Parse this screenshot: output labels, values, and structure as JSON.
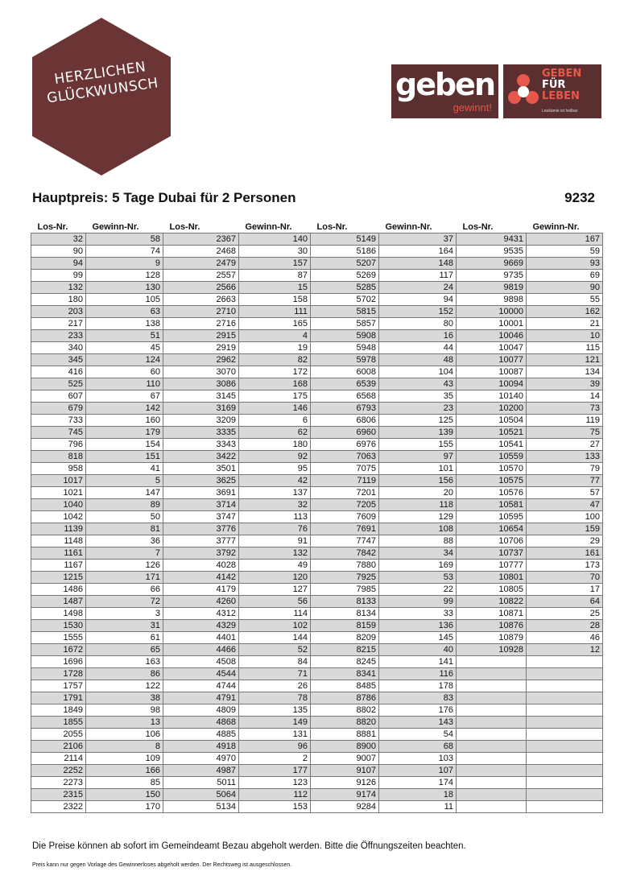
{
  "badge": {
    "line1": "HERZLICHEN",
    "line2": "GLÜCKWUNSCH",
    "color": "#6b3535"
  },
  "logos": {
    "geben": {
      "word": "geben",
      "sub": "gewinnt!"
    },
    "gfl": {
      "l1": "GEBEN",
      "l2": "FÜR",
      "l3": "LEBEN",
      "tag": "Leukämie ist heilbar"
    },
    "color": "#5b2f2f",
    "accent": "#e8574b"
  },
  "title": "Hauptpreis: 5 Tage Dubai für 2 Personen",
  "number": "9232",
  "table": {
    "headers": [
      "Los-Nr.",
      "Gewinn-Nr.",
      "Los-Nr.",
      "Gewinn-Nr.",
      "Los-Nr.",
      "Gewinn-Nr.",
      "Los-Nr.",
      "Gewinn-Nr."
    ],
    "groups": [
      [
        [
          "32",
          "58"
        ],
        [
          "90",
          "74"
        ],
        [
          "94",
          "9"
        ],
        [
          "99",
          "128"
        ],
        [
          "132",
          "130"
        ],
        [
          "180",
          "105"
        ],
        [
          "203",
          "63"
        ],
        [
          "217",
          "138"
        ],
        [
          "233",
          "51"
        ],
        [
          "340",
          "45"
        ],
        [
          "345",
          "124"
        ],
        [
          "416",
          "60"
        ],
        [
          "525",
          "110"
        ],
        [
          "607",
          "67"
        ],
        [
          "679",
          "142"
        ],
        [
          "733",
          "160"
        ],
        [
          "745",
          "179"
        ],
        [
          "796",
          "154"
        ],
        [
          "818",
          "151"
        ],
        [
          "958",
          "41"
        ],
        [
          "1017",
          "5"
        ],
        [
          "1021",
          "147"
        ],
        [
          "1040",
          "89"
        ],
        [
          "1042",
          "50"
        ],
        [
          "1139",
          "81"
        ],
        [
          "1148",
          "36"
        ],
        [
          "1161",
          "7"
        ],
        [
          "1167",
          "126"
        ],
        [
          "1215",
          "171"
        ],
        [
          "1486",
          "66"
        ],
        [
          "1487",
          "72"
        ],
        [
          "1498",
          "3"
        ],
        [
          "1530",
          "31"
        ],
        [
          "1555",
          "61"
        ],
        [
          "1672",
          "65"
        ],
        [
          "1696",
          "163"
        ],
        [
          "1728",
          "86"
        ],
        [
          "1757",
          "122"
        ],
        [
          "1791",
          "38"
        ],
        [
          "1849",
          "98"
        ],
        [
          "1855",
          "13"
        ],
        [
          "2055",
          "106"
        ],
        [
          "2106",
          "8"
        ],
        [
          "2114",
          "109"
        ],
        [
          "2252",
          "166"
        ],
        [
          "2273",
          "85"
        ],
        [
          "2315",
          "150"
        ],
        [
          "2322",
          "170"
        ]
      ],
      [
        [
          "2367",
          "140"
        ],
        [
          "2468",
          "30"
        ],
        [
          "2479",
          "157"
        ],
        [
          "2557",
          "87"
        ],
        [
          "2566",
          "15"
        ],
        [
          "2663",
          "158"
        ],
        [
          "2710",
          "111"
        ],
        [
          "2716",
          "165"
        ],
        [
          "2915",
          "4"
        ],
        [
          "2919",
          "19"
        ],
        [
          "2962",
          "82"
        ],
        [
          "3070",
          "172"
        ],
        [
          "3086",
          "168"
        ],
        [
          "3145",
          "175"
        ],
        [
          "3169",
          "146"
        ],
        [
          "3209",
          "6"
        ],
        [
          "3335",
          "62"
        ],
        [
          "3343",
          "180"
        ],
        [
          "3422",
          "92"
        ],
        [
          "3501",
          "95"
        ],
        [
          "3625",
          "42"
        ],
        [
          "3691",
          "137"
        ],
        [
          "3714",
          "32"
        ],
        [
          "3747",
          "113"
        ],
        [
          "3776",
          "76"
        ],
        [
          "3777",
          "91"
        ],
        [
          "3792",
          "132"
        ],
        [
          "4028",
          "49"
        ],
        [
          "4142",
          "120"
        ],
        [
          "4179",
          "127"
        ],
        [
          "4260",
          "56"
        ],
        [
          "4312",
          "114"
        ],
        [
          "4329",
          "102"
        ],
        [
          "4401",
          "144"
        ],
        [
          "4466",
          "52"
        ],
        [
          "4508",
          "84"
        ],
        [
          "4544",
          "71"
        ],
        [
          "4744",
          "26"
        ],
        [
          "4791",
          "78"
        ],
        [
          "4809",
          "135"
        ],
        [
          "4868",
          "149"
        ],
        [
          "4885",
          "131"
        ],
        [
          "4918",
          "96"
        ],
        [
          "4970",
          "2"
        ],
        [
          "4987",
          "177"
        ],
        [
          "5011",
          "123"
        ],
        [
          "5064",
          "112"
        ],
        [
          "5134",
          "153"
        ]
      ],
      [
        [
          "5149",
          "37"
        ],
        [
          "5186",
          "164"
        ],
        [
          "5207",
          "148"
        ],
        [
          "5269",
          "117"
        ],
        [
          "5285",
          "24"
        ],
        [
          "5702",
          "94"
        ],
        [
          "5815",
          "152"
        ],
        [
          "5857",
          "80"
        ],
        [
          "5908",
          "16"
        ],
        [
          "5948",
          "44"
        ],
        [
          "5978",
          "48"
        ],
        [
          "6008",
          "104"
        ],
        [
          "6539",
          "43"
        ],
        [
          "6568",
          "35"
        ],
        [
          "6793",
          "23"
        ],
        [
          "6806",
          "125"
        ],
        [
          "6960",
          "139"
        ],
        [
          "6976",
          "155"
        ],
        [
          "7063",
          "97"
        ],
        [
          "7075",
          "101"
        ],
        [
          "7119",
          "156"
        ],
        [
          "7201",
          "20"
        ],
        [
          "7205",
          "118"
        ],
        [
          "7609",
          "129"
        ],
        [
          "7691",
          "108"
        ],
        [
          "7747",
          "88"
        ],
        [
          "7842",
          "34"
        ],
        [
          "7880",
          "169"
        ],
        [
          "7925",
          "53"
        ],
        [
          "7985",
          "22"
        ],
        [
          "8133",
          "99"
        ],
        [
          "8134",
          "33"
        ],
        [
          "8159",
          "136"
        ],
        [
          "8209",
          "145"
        ],
        [
          "8215",
          "40"
        ],
        [
          "8245",
          "141"
        ],
        [
          "8341",
          "116"
        ],
        [
          "8485",
          "178"
        ],
        [
          "8786",
          "83"
        ],
        [
          "8802",
          "176"
        ],
        [
          "8820",
          "143"
        ],
        [
          "8881",
          "54"
        ],
        [
          "8900",
          "68"
        ],
        [
          "9007",
          "103"
        ],
        [
          "9107",
          "107"
        ],
        [
          "9126",
          "174"
        ],
        [
          "9174",
          "18"
        ],
        [
          "9284",
          "11"
        ]
      ],
      [
        [
          "9431",
          "167"
        ],
        [
          "9535",
          "59"
        ],
        [
          "9669",
          "93"
        ],
        [
          "9735",
          "69"
        ],
        [
          "9819",
          "90"
        ],
        [
          "9898",
          "55"
        ],
        [
          "10000",
          "162"
        ],
        [
          "10001",
          "21"
        ],
        [
          "10046",
          "10"
        ],
        [
          "10047",
          "115"
        ],
        [
          "10077",
          "121"
        ],
        [
          "10087",
          "134"
        ],
        [
          "10094",
          "39"
        ],
        [
          "10140",
          "14"
        ],
        [
          "10200",
          "73"
        ],
        [
          "10504",
          "119"
        ],
        [
          "10521",
          "75"
        ],
        [
          "10541",
          "27"
        ],
        [
          "10559",
          "133"
        ],
        [
          "10570",
          "79"
        ],
        [
          "10575",
          "77"
        ],
        [
          "10576",
          "57"
        ],
        [
          "10581",
          "47"
        ],
        [
          "10595",
          "100"
        ],
        [
          "10654",
          "159"
        ],
        [
          "10706",
          "29"
        ],
        [
          "10737",
          "161"
        ],
        [
          "10777",
          "173"
        ],
        [
          "10801",
          "70"
        ],
        [
          "10805",
          "17"
        ],
        [
          "10822",
          "64"
        ],
        [
          "10871",
          "25"
        ],
        [
          "10876",
          "28"
        ],
        [
          "10879",
          "46"
        ],
        [
          "10928",
          "12"
        ]
      ]
    ]
  },
  "footer": {
    "line1": "Die Preise können ab sofort im Gemeindeamt Bezau abgeholt werden. Bitte die Öffnungszeiten beachten.",
    "line2": "Preis kann nur gegen Vorlage des Gewinnerloses abgeholt werden. Der Rechtsweg ist ausgeschlossen."
  }
}
